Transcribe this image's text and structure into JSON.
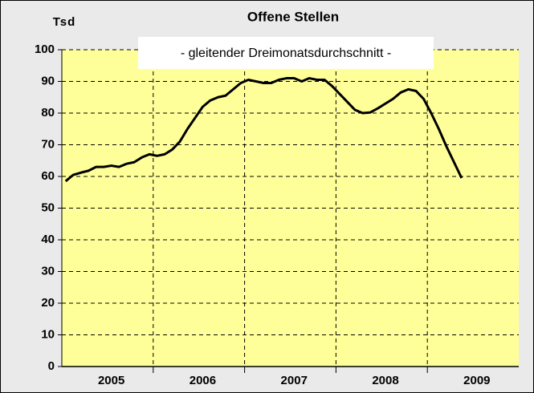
{
  "chart_data": {
    "type": "line",
    "title": "Offene Stellen",
    "subtitle": "- gleitender Dreimonatsdurchschnitt -",
    "y_label": "Tsd",
    "categories": [
      null,
      null,
      null,
      null,
      null,
      null,
      "2005",
      null,
      null,
      null,
      null,
      null,
      null,
      null,
      null,
      null,
      null,
      null,
      "2006",
      null,
      null,
      null,
      null,
      null,
      null,
      null,
      null,
      null,
      null,
      null,
      "2007",
      null,
      null,
      null,
      null,
      null,
      null,
      null,
      null,
      null,
      null,
      null,
      "2008",
      null,
      null,
      null,
      null,
      null,
      null,
      null,
      null,
      null,
      null,
      null,
      "2009",
      null,
      null,
      null,
      null,
      null
    ],
    "series": [
      {
        "name": "Offene Stellen",
        "color": "#000000",
        "values": [
          58.5,
          60.5,
          61.2,
          61.8,
          63,
          63,
          63.4,
          63,
          64,
          64.5,
          66,
          67,
          66.5,
          67,
          68.5,
          71,
          75,
          78.5,
          82,
          84,
          85,
          85.5,
          87.5,
          89.5,
          90.5,
          90,
          89.5,
          89.5,
          90.5,
          91,
          91,
          90,
          91,
          90.5,
          90.5,
          88.5,
          86,
          83.5,
          81,
          80,
          80.2,
          81.5,
          83,
          84.5,
          86.5,
          87.5,
          87,
          84.5,
          80,
          75,
          69.5,
          64.5,
          59.5,
          null,
          null,
          null,
          null,
          null,
          null,
          null
        ]
      }
    ],
    "ylim": [
      0,
      100
    ],
    "yticks": [
      0,
      10,
      20,
      30,
      40,
      50,
      60,
      70,
      80,
      90,
      100
    ],
    "grid": true,
    "plot_color": "#ffff99",
    "background_color": "#eaeaea"
  }
}
